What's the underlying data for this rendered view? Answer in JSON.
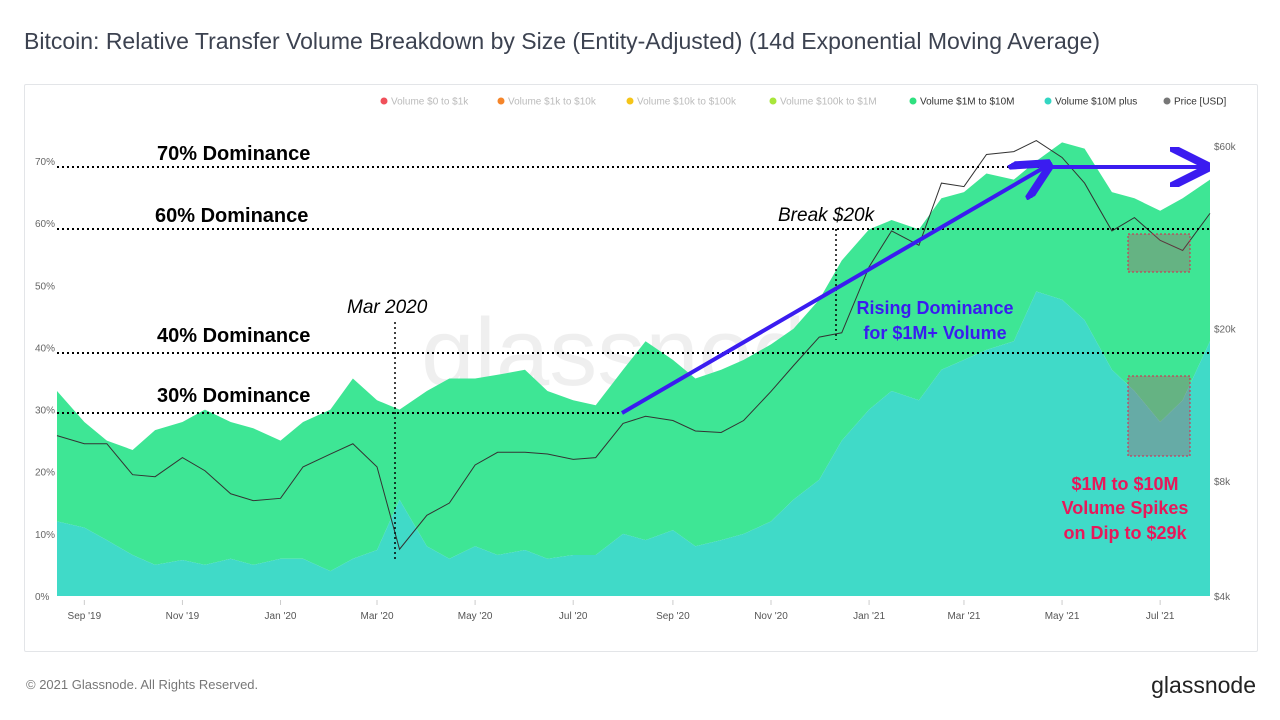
{
  "title": "Bitcoin: Relative Transfer Volume Breakdown by Size (Entity-Adjusted) (14d Exponential Moving Average)",
  "footer": "© 2021 Glassnode. All Rights Reserved.",
  "brand": "glassnode",
  "watermark": "glassnode",
  "chart_data": {
    "type": "area",
    "stacked": true,
    "legend_position": "top-right",
    "legend": [
      {
        "name": "Volume $0 to $1k",
        "color": "#f0505a",
        "active": false
      },
      {
        "name": "Volume $1k to $10k",
        "color": "#f5852a",
        "active": false
      },
      {
        "name": "Volume $10k to $100k",
        "color": "#f5c518",
        "active": false
      },
      {
        "name": "Volume $100k to $1M",
        "color": "#a8e63a",
        "active": false
      },
      {
        "name": "Volume $1M to $10M",
        "color": "#2ee07f",
        "active": true
      },
      {
        "name": "Volume $10M plus",
        "color": "#33d6c2",
        "active": true
      },
      {
        "name": "Price [USD]",
        "color": "#777777",
        "active": true
      }
    ],
    "x": [
      "2019-08-15",
      "2019-09-01",
      "2019-09-15",
      "2019-10-01",
      "2019-10-15",
      "2019-11-01",
      "2019-11-15",
      "2019-12-01",
      "2019-12-15",
      "2020-01-01",
      "2020-01-15",
      "2020-02-01",
      "2020-02-15",
      "2020-03-01",
      "2020-03-15",
      "2020-04-01",
      "2020-04-15",
      "2020-05-01",
      "2020-05-15",
      "2020-06-01",
      "2020-06-15",
      "2020-07-01",
      "2020-07-15",
      "2020-08-01",
      "2020-08-15",
      "2020-09-01",
      "2020-09-15",
      "2020-10-01",
      "2020-10-15",
      "2020-11-01",
      "2020-11-15",
      "2020-12-01",
      "2020-12-15",
      "2021-01-01",
      "2021-01-15",
      "2021-02-01",
      "2021-02-15",
      "2021-03-01",
      "2021-03-15",
      "2021-04-01",
      "2021-04-15",
      "2021-05-01",
      "2021-05-15",
      "2021-06-01",
      "2021-06-15",
      "2021-07-01",
      "2021-07-15",
      "2021-08-01"
    ],
    "series": [
      {
        "name": "Volume $10M plus",
        "values": [
          12,
          11,
          9,
          6.6,
          5,
          5.8,
          5,
          6,
          5,
          6,
          6,
          4,
          6,
          7.4,
          15.5,
          8,
          6,
          8,
          6.6,
          7.4,
          6,
          6.6,
          6.6,
          10,
          9,
          10.6,
          8,
          9,
          10,
          12,
          15.5,
          18.7,
          25,
          30,
          33,
          31.5,
          36.4,
          38,
          39.6,
          41,
          49,
          47.7,
          44.4,
          36.4,
          33,
          28,
          31.5,
          41
        ]
      },
      {
        "name": "Volume $1M to $10M",
        "values": [
          21,
          17,
          16,
          16.9,
          21.7,
          22.2,
          25,
          22,
          22,
          19,
          22,
          26,
          29,
          24.1,
          14.5,
          25,
          29,
          27,
          29,
          29,
          27,
          24.9,
          24.1,
          26.4,
          32,
          27.4,
          27,
          27.4,
          28,
          28.5,
          27.5,
          29,
          29,
          29,
          27.5,
          27.5,
          27.6,
          27,
          28.4,
          26,
          21,
          25.3,
          27.6,
          28.6,
          31,
          34,
          32.5,
          26
        ]
      },
      {
        "name": "Price [USD]",
        "values": [
          10500,
          10000,
          10000,
          8300,
          8200,
          9200,
          8500,
          7400,
          7100,
          7200,
          8700,
          9400,
          10000,
          8700,
          5300,
          6500,
          7000,
          8800,
          9500,
          9500,
          9400,
          9100,
          9200,
          11300,
          11800,
          11500,
          10800,
          10700,
          11500,
          13700,
          16000,
          19000,
          19500,
          29000,
          36000,
          33000,
          48000,
          47000,
          57000,
          58000,
          62000,
          56000,
          48000,
          36000,
          39000,
          34000,
          32000,
          40000
        ]
      }
    ],
    "y_left": {
      "ticks": [
        "0%",
        "10%",
        "20%",
        "30%",
        "40%",
        "50%",
        "60%",
        "70%"
      ],
      "range": [
        0,
        70
      ]
    },
    "y_right": {
      "scale": "log",
      "ticks": [
        "$4k",
        "$8k",
        "$20k",
        "$60k"
      ],
      "values": [
        4000,
        8000,
        20000,
        60000
      ]
    },
    "x_ticks": [
      "Sep '19",
      "Nov '19",
      "Jan '20",
      "Mar '20",
      "May '20",
      "Jul '20",
      "Sep '20",
      "Nov '20",
      "Jan '21",
      "Mar '21",
      "May '21",
      "Jul '21"
    ],
    "annotations": {
      "dominance_70": "70% Dominance",
      "dominance_60": "60% Dominance",
      "dominance_40": "40% Dominance",
      "dominance_30": "30% Dominance",
      "mar2020": "Mar 2020",
      "break20k": "Break $20k",
      "rising_1": "Rising Dominance",
      "rising_2": "for $1M+ Volume",
      "spike_1": "$1M to $10M",
      "spike_2": "Volume Spikes",
      "spike_3": "on Dip to $29k"
    }
  }
}
